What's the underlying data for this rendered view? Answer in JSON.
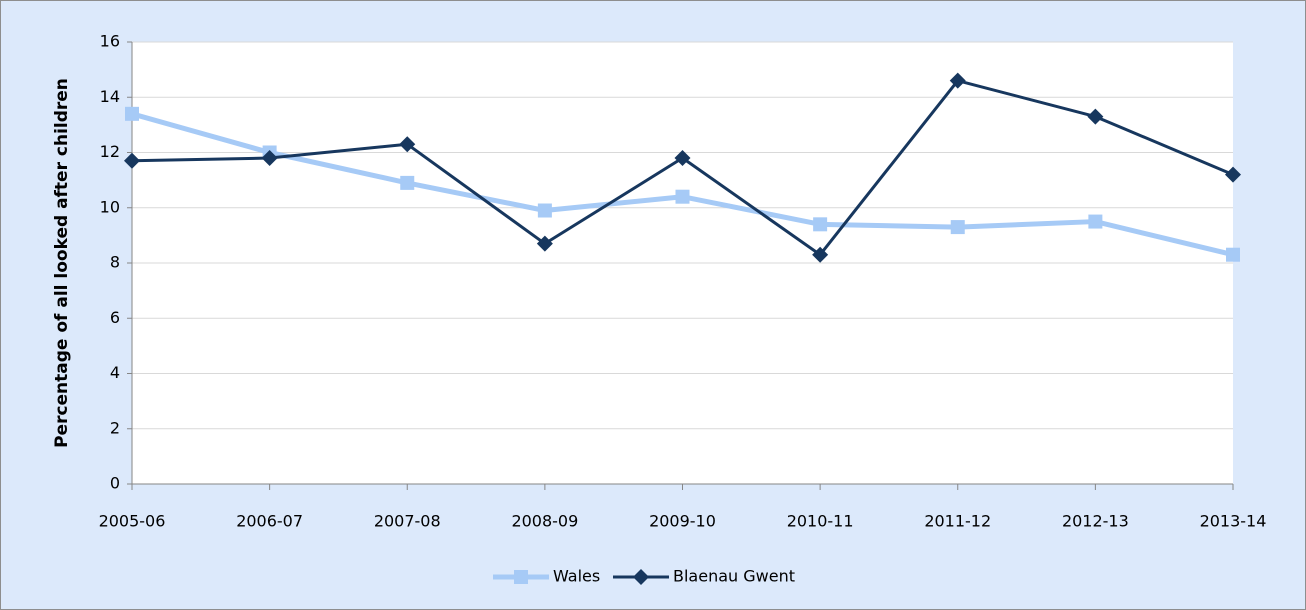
{
  "chart_data": {
    "type": "line",
    "y_label": "Percentage of all looked after children",
    "categories": [
      "2005-06",
      "2006-07",
      "2007-08",
      "2008-09",
      "2009-10",
      "2010-11",
      "2011-12",
      "2012-13",
      "2013-14"
    ],
    "series": [
      {
        "name": "Wales",
        "color": "#a6caf6",
        "marker": "square",
        "values": [
          13.4,
          12.0,
          10.9,
          9.9,
          10.4,
          9.4,
          9.3,
          9.5,
          8.3
        ]
      },
      {
        "name": "Blaenau Gwent",
        "color": "#17375e",
        "marker": "diamond",
        "values": [
          11.7,
          11.8,
          12.3,
          8.7,
          11.8,
          8.3,
          14.6,
          13.3,
          11.2
        ]
      }
    ],
    "ylim": [
      0,
      16
    ],
    "yticks": [
      0,
      2,
      4,
      6,
      8,
      10,
      12,
      14,
      16
    ],
    "grid": true,
    "legend": "bottom"
  }
}
